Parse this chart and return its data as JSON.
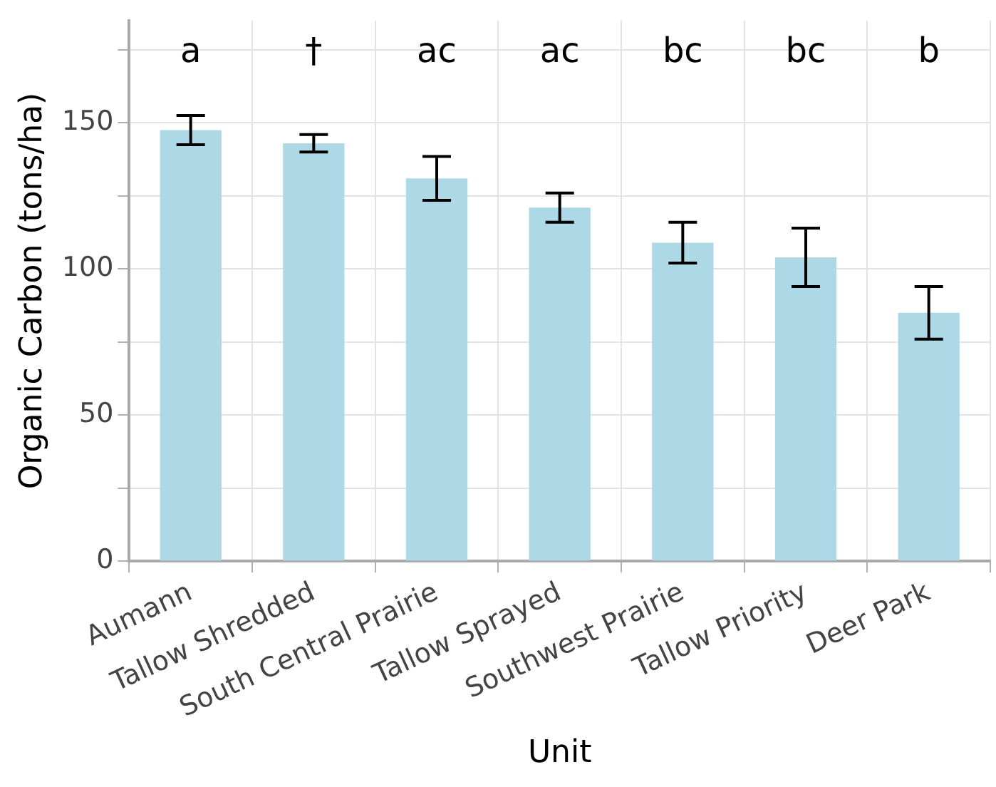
{
  "chart_data": {
    "type": "bar",
    "xlabel": "Unit",
    "ylabel": "Organic Carbon (tons/ha)",
    "categories": [
      "Aumann",
      "Tallow Shredded",
      "South Central Prairie",
      "Tallow Sprayed",
      "Southwest Prairie",
      "Tallow Priority",
      "Deer Park"
    ],
    "values": [
      147.5,
      143,
      131,
      121,
      109,
      104,
      85
    ],
    "errors": [
      5,
      3,
      7.5,
      5,
      7,
      10,
      9
    ],
    "color": "#add8e6",
    "ylim": [
      0,
      185
    ],
    "yticks": [
      0,
      {
        "value": 25,
        "label": null
      },
      50,
      {
        "value": 75,
        "label": null
      },
      100,
      {
        "value": 125,
        "label": null
      },
      150,
      {
        "value": 175,
        "label": null
      }
    ],
    "grid": true,
    "annotations": [
      "a",
      "†",
      "ac",
      "ac",
      "bc",
      "bc",
      "b"
    ]
  }
}
